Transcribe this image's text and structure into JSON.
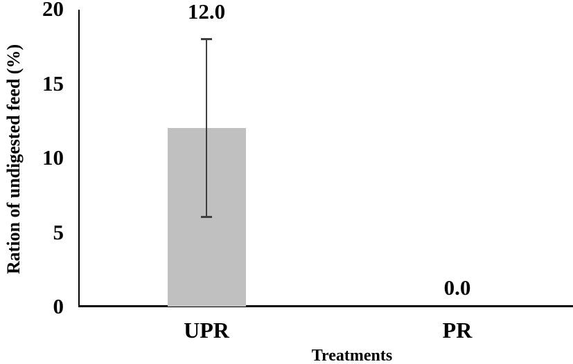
{
  "chart_data": {
    "type": "bar",
    "title": "",
    "xlabel": "Treatments",
    "ylabel": "Ration of undigested feed (%)",
    "categories": [
      "UPR",
      "PR"
    ],
    "values": [
      12.0,
      0.0
    ],
    "data_labels": [
      "12.0",
      "0.0"
    ],
    "error_bars": [
      {
        "plus": 6.0,
        "minus": 6.0
      },
      {
        "plus": 0.0,
        "minus": 0.0
      }
    ],
    "ylim": [
      0,
      20
    ],
    "yticks": [
      0,
      5,
      10,
      15,
      20
    ],
    "grid": false,
    "legend": "none",
    "bar_color": "#c1c0c0",
    "error_color": "#3f3f3f",
    "axis_color": "#000000",
    "text_color": "#000000"
  }
}
